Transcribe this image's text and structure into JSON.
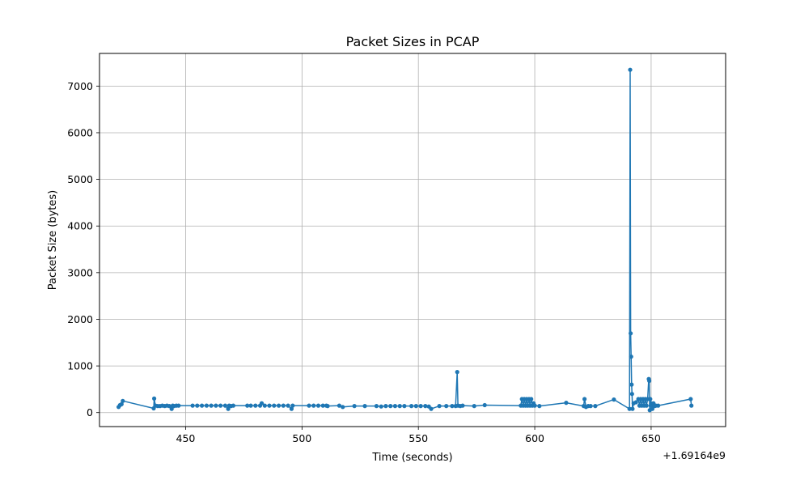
{
  "chart_data": {
    "type": "line",
    "title": "Packet Sizes in PCAP",
    "xlabel": "Time (seconds)",
    "ylabel": "Packet Size (bytes)",
    "x_offset_label": "+1.69164e9",
    "xlim": [
      413,
      682
    ],
    "ylim": [
      -300,
      7700
    ],
    "xticks": [
      450,
      500,
      550,
      600,
      650
    ],
    "yticks": [
      0,
      1000,
      2000,
      3000,
      4000,
      5000,
      6000,
      7000
    ],
    "grid": true,
    "color": "#1f77b4",
    "marker": "circle",
    "series": [
      {
        "x": [
          421.2,
          421.8,
          422.5,
          423.0,
          436.3,
          436.5,
          437.0,
          438.0,
          439.0,
          440.0,
          441.0,
          442.0,
          443.0,
          444.0,
          444.5,
          445.0,
          446.0,
          447.0,
          453.0,
          455.0,
          457.0,
          459.0,
          461.0,
          463.0,
          465.0,
          467.0,
          468.3,
          468.7,
          469.5,
          470.5,
          476.5,
          478.0,
          480.0,
          482.0,
          482.7,
          484.0,
          486.0,
          488.0,
          490.0,
          492.0,
          494.0,
          495.5,
          496.0,
          503.0,
          505.0,
          507.0,
          509.0,
          510.5,
          511.0,
          516.0,
          517.5,
          522.5,
          527.0,
          532.0,
          534.0,
          536.0,
          538.0,
          540.0,
          542.0,
          544.0,
          547.0,
          549.0,
          551.0,
          553.0,
          554.5,
          555.5,
          559.0,
          562.0,
          564.5,
          566.0,
          566.7,
          567.0,
          568.0,
          569.0,
          574.0,
          578.5,
          594.0,
          594.5,
          595.0,
          595.5,
          596.0,
          596.5,
          597.0,
          597.5,
          598.0,
          598.5,
          599.0,
          599.5,
          600.0,
          602.0,
          613.5,
          621.0,
          621.4,
          622.0,
          623.0,
          624.0,
          626.0,
          634.0,
          640.7,
          641.0,
          641.2,
          641.4,
          641.6,
          641.8,
          642.0,
          642.5,
          643.5,
          644.5,
          645.0,
          645.5,
          646.0,
          646.5,
          647.0,
          647.5,
          648.0,
          648.5,
          649.0,
          649.2,
          649.4,
          649.6,
          649.8,
          650.0,
          650.5,
          651.0,
          651.5,
          652.0,
          653.0,
          667.0,
          667.3
        ],
        "y": [
          120,
          160,
          180,
          250,
          90,
          300,
          150,
          140,
          140,
          150,
          140,
          150,
          140,
          80,
          150,
          140,
          150,
          150,
          150,
          150,
          150,
          150,
          150,
          150,
          150,
          150,
          80,
          150,
          140,
          150,
          150,
          150,
          150,
          150,
          200,
          150,
          150,
          150,
          150,
          150,
          150,
          80,
          150,
          150,
          150,
          150,
          150,
          150,
          140,
          150,
          120,
          140,
          140,
          140,
          130,
          140,
          140,
          140,
          140,
          140,
          140,
          140,
          140,
          140,
          130,
          80,
          140,
          140,
          140,
          140,
          870,
          150,
          140,
          150,
          140,
          160,
          150,
          290,
          150,
          290,
          150,
          290,
          150,
          290,
          150,
          290,
          150,
          200,
          150,
          140,
          210,
          140,
          290,
          120,
          140,
          140,
          140,
          280,
          80,
          7350,
          1700,
          1200,
          600,
          400,
          80,
          200,
          220,
          290,
          150,
          290,
          150,
          290,
          150,
          290,
          150,
          290,
          720,
          680,
          50,
          290,
          150,
          200,
          80,
          200,
          140,
          150,
          150,
          290,
          150
        ]
      }
    ]
  }
}
